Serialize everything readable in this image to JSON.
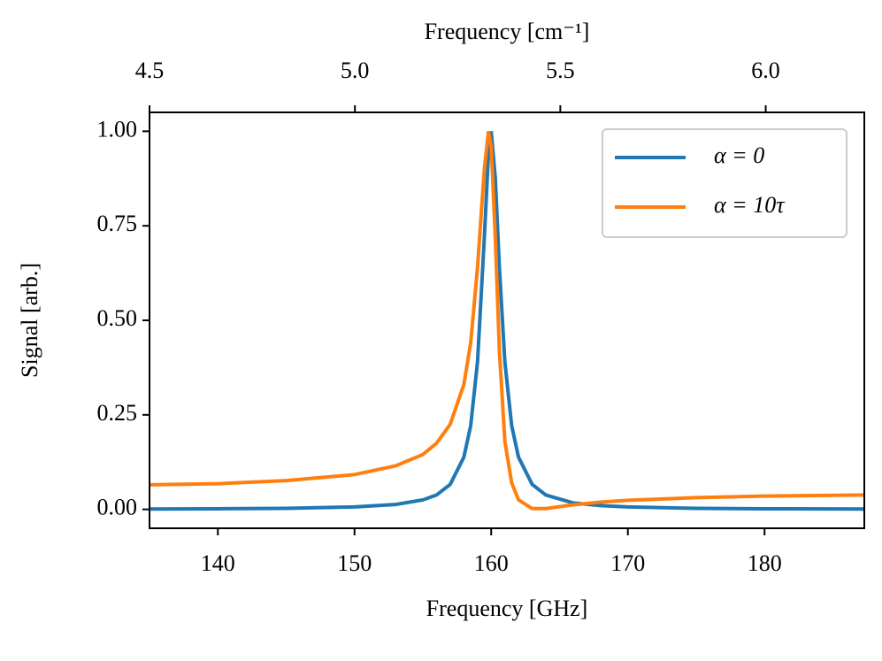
{
  "chart_data": {
    "type": "line",
    "xlabel": "Frequency [GHz]",
    "x2label": "Frequency [cm⁻¹]",
    "ylabel": "Signal [arb.]",
    "x": [
      135,
      140,
      145,
      150,
      153,
      155,
      156,
      157,
      158,
      158.5,
      159,
      159.5,
      159.8,
      160,
      160.3,
      160.6,
      161,
      161.5,
      162,
      163,
      164,
      166,
      168,
      170,
      175,
      180,
      187.3
    ],
    "series": [
      {
        "name": "α = 0",
        "color": "#1f77b4",
        "values": [
          0.001,
          0.0016,
          0.0028,
          0.0064,
          0.013,
          0.025,
          0.038,
          0.066,
          0.138,
          0.221,
          0.39,
          0.72,
          0.94,
          1.0,
          0.877,
          0.64,
          0.39,
          0.221,
          0.138,
          0.066,
          0.038,
          0.017,
          0.0099,
          0.0064,
          0.0028,
          0.0016,
          0.0009
        ]
      },
      {
        "name": "α = 10τ",
        "color": "#ff7f0e",
        "values": [
          0.065,
          0.068,
          0.076,
          0.092,
          0.115,
          0.145,
          0.175,
          0.225,
          0.33,
          0.44,
          0.64,
          0.9,
          1.0,
          0.96,
          0.72,
          0.42,
          0.18,
          0.07,
          0.025,
          0.002,
          0.002,
          0.012,
          0.019,
          0.024,
          0.031,
          0.035,
          0.038
        ]
      }
    ],
    "xlim": [
      135,
      187.3
    ],
    "xticks": [
      140,
      150,
      160,
      170,
      180
    ],
    "x2lim": [
      4.5,
      6.24
    ],
    "x2ticks": [
      4.5,
      {
        "value": 5,
        "label": "5.0"
      },
      5.5,
      {
        "value": 6,
        "label": "6.0"
      }
    ],
    "ylim": [
      -0.05,
      1.05
    ],
    "yticks": [
      {
        "value": 0,
        "label": "0.00"
      },
      0.25,
      {
        "value": 0.5,
        "label": "0.50"
      },
      0.75,
      {
        "value": 1,
        "label": "1.00"
      }
    ],
    "legend": "upper right"
  }
}
